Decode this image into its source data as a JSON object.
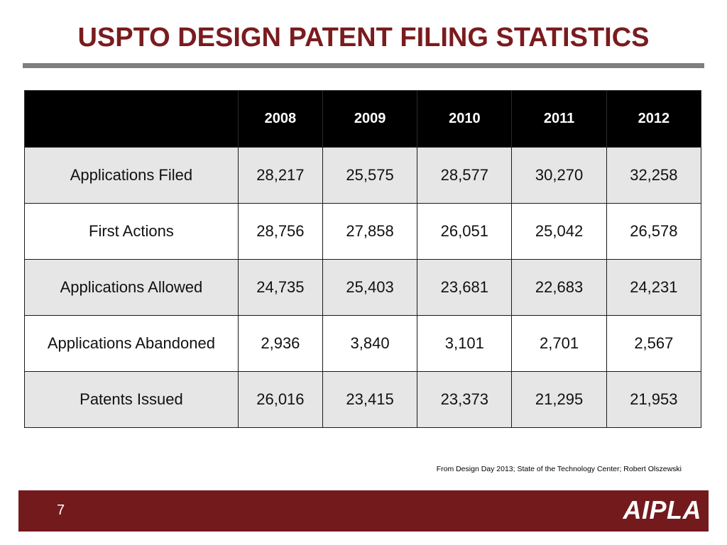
{
  "slide": {
    "title": "USPTO DESIGN PATENT FILING STATISTICS",
    "source_note": "From Design Day 2013; State of the Technology Center; Robert Olszewski",
    "page_number": "7",
    "logo": "AIPLA"
  },
  "colors": {
    "title": "#7a1b1e",
    "footer": "#731a1d",
    "header_row": "#000000",
    "shaded_row": "#e6e6e6",
    "rule": "#7f7f7f"
  },
  "table": {
    "corner": "",
    "years": [
      "2008",
      "2009",
      "2010",
      "2011",
      "2012"
    ],
    "rows": [
      {
        "label": "Applications Filed",
        "values": [
          "28,217",
          "25,575",
          "28,577",
          "30,270",
          "32,258"
        ]
      },
      {
        "label": "First Actions",
        "values": [
          "28,756",
          "27,858",
          "26,051",
          "25,042",
          "26,578"
        ]
      },
      {
        "label": "Applications Allowed",
        "values": [
          "24,735",
          "25,403",
          "23,681",
          "22,683",
          "24,231"
        ]
      },
      {
        "label": "Applications Abandoned",
        "values": [
          "2,936",
          "3,840",
          "3,101",
          "2,701",
          "2,567"
        ]
      },
      {
        "label": "Patents Issued",
        "values": [
          "26,016",
          "23,415",
          "23,373",
          "21,295",
          "21,953"
        ]
      }
    ]
  }
}
